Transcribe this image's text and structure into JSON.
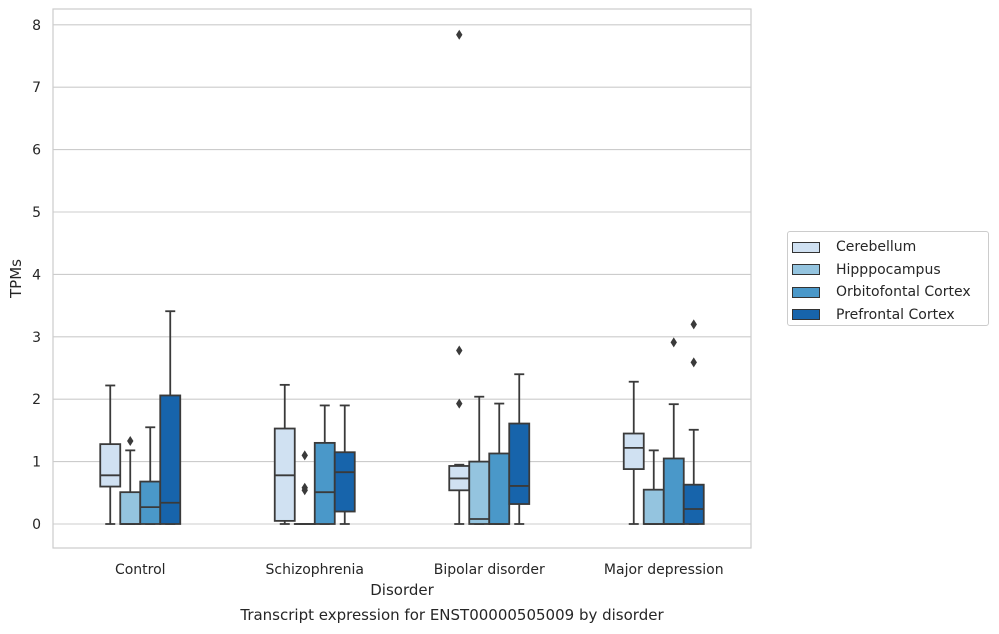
{
  "chart_data": {
    "type": "box",
    "title": "Transcript expression for ENST00000505009 by disorder",
    "xlabel": "Disorder",
    "ylabel": "TPMs",
    "ylim": [
      -0.38,
      8.25
    ],
    "yticks": [
      "0",
      "1",
      "2",
      "3",
      "4",
      "5",
      "6",
      "7",
      "8"
    ],
    "categories": [
      "Control",
      "Schizophrenia",
      "Bipolar disorder",
      "Major depression"
    ],
    "grid": true,
    "legend_position": "right",
    "series": [
      {
        "name": "Cerebellum",
        "color": "#d0e1f2",
        "boxes": [
          {
            "whislo": 0.0,
            "q1": 0.6,
            "med": 0.78,
            "q3": 1.28,
            "whishi": 2.22,
            "fliers": []
          },
          {
            "whislo": 0.0,
            "q1": 0.05,
            "med": 0.78,
            "q3": 1.53,
            "whishi": 2.23,
            "fliers": []
          },
          {
            "whislo": 0.0,
            "q1": 0.54,
            "med": 0.73,
            "q3": 0.93,
            "whishi": 0.95,
            "fliers": [
              1.93,
              2.78,
              7.84
            ]
          },
          {
            "whislo": 0.0,
            "q1": 0.88,
            "med": 1.22,
            "q3": 1.45,
            "whishi": 2.28,
            "fliers": []
          }
        ]
      },
      {
        "name": "Hipppocampus",
        "color": "#94c4df",
        "boxes": [
          {
            "whislo": 0.0,
            "q1": 0.0,
            "med": 0.0,
            "q3": 0.51,
            "whishi": 1.18,
            "fliers": [
              1.33
            ]
          },
          {
            "whislo": 0.0,
            "q1": 0.0,
            "med": 0.0,
            "q3": 0.0,
            "whishi": 0.0,
            "fliers": [
              0.54,
              0.58,
              1.1
            ]
          },
          {
            "whislo": 0.0,
            "q1": 0.0,
            "med": 0.08,
            "q3": 1.0,
            "whishi": 2.04,
            "fliers": []
          },
          {
            "whislo": 0.0,
            "q1": 0.0,
            "med": 0.0,
            "q3": 0.55,
            "whishi": 1.18,
            "fliers": []
          }
        ]
      },
      {
        "name": "Orbitofontal Cortex",
        "color": "#4a98c9",
        "boxes": [
          {
            "whislo": 0.0,
            "q1": 0.0,
            "med": 0.27,
            "q3": 0.68,
            "whishi": 1.55,
            "fliers": []
          },
          {
            "whislo": 0.0,
            "q1": 0.0,
            "med": 0.51,
            "q3": 1.3,
            "whishi": 1.9,
            "fliers": []
          },
          {
            "whislo": 0.0,
            "q1": 0.0,
            "med": 0.0,
            "q3": 1.13,
            "whishi": 1.93,
            "fliers": []
          },
          {
            "whislo": 0.0,
            "q1": 0.0,
            "med": 0.0,
            "q3": 1.05,
            "whishi": 1.92,
            "fliers": [
              2.91
            ]
          }
        ]
      },
      {
        "name": "Prefrontal Cortex",
        "color": "#1764ab",
        "boxes": [
          {
            "whislo": 0.0,
            "q1": 0.0,
            "med": 0.34,
            "q3": 2.06,
            "whishi": 3.41,
            "fliers": []
          },
          {
            "whislo": 0.0,
            "q1": 0.2,
            "med": 0.83,
            "q3": 1.15,
            "whishi": 1.9,
            "fliers": []
          },
          {
            "whislo": 0.0,
            "q1": 0.32,
            "med": 0.61,
            "q3": 1.61,
            "whishi": 2.4,
            "fliers": []
          },
          {
            "whislo": 0.0,
            "q1": 0.0,
            "med": 0.24,
            "q3": 0.63,
            "whishi": 1.51,
            "fliers": [
              2.59,
              3.2
            ]
          }
        ]
      }
    ]
  }
}
